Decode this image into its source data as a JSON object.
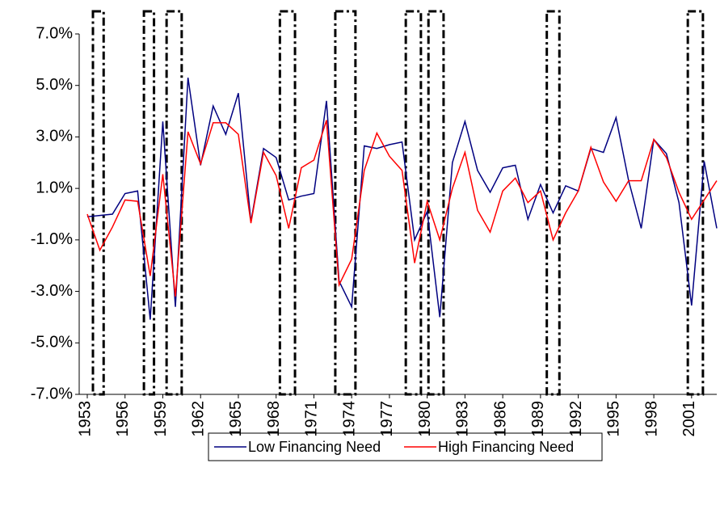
{
  "chart_data": {
    "type": "line",
    "x": [
      1953,
      1954,
      1955,
      1956,
      1957,
      1958,
      1959,
      1960,
      1961,
      1962,
      1963,
      1964,
      1965,
      1966,
      1967,
      1968,
      1969,
      1970,
      1971,
      1972,
      1973,
      1974,
      1975,
      1976,
      1977,
      1978,
      1979,
      1980,
      1981,
      1982,
      1983,
      1984,
      1985,
      1986,
      1987,
      1988,
      1989,
      1990,
      1991,
      1992,
      1993,
      1994,
      1995,
      1996,
      1997,
      1998,
      1999,
      2000,
      2001,
      2002,
      2003
    ],
    "series": [
      {
        "name": "Low Financing Need",
        "color": "#000080",
        "values": [
          -0.1,
          -0.05,
          0.0,
          0.8,
          0.9,
          -4.1,
          3.6,
          -3.6,
          5.3,
          1.9,
          4.2,
          3.1,
          4.7,
          -0.3,
          2.55,
          2.2,
          0.55,
          0.7,
          0.8,
          4.4,
          -2.6,
          -3.6,
          2.65,
          2.55,
          2.7,
          2.8,
          -1.0,
          0.1,
          -4.0,
          2.0,
          3.6,
          1.7,
          0.85,
          1.8,
          1.9,
          -0.2,
          1.15,
          0.05,
          1.1,
          0.9,
          2.55,
          2.4,
          3.75,
          1.3,
          -0.55,
          2.9,
          2.35,
          0.45,
          -3.55,
          2.05,
          -0.55
        ]
      },
      {
        "name": "High Financing Need",
        "color": "#ff0000",
        "values": [
          0.0,
          -1.4,
          -0.5,
          0.55,
          0.5,
          -2.4,
          1.55,
          -3.2,
          3.2,
          1.95,
          3.55,
          3.55,
          3.1,
          -0.35,
          2.4,
          1.5,
          -0.55,
          1.8,
          2.1,
          3.65,
          -2.75,
          -1.75,
          1.7,
          3.15,
          2.25,
          1.7,
          -1.9,
          0.5,
          -1.0,
          1.0,
          2.4,
          0.15,
          -0.7,
          0.9,
          1.4,
          0.45,
          0.9,
          -1.0,
          0.05,
          0.9,
          2.6,
          1.25,
          0.5,
          1.3,
          1.3,
          2.9,
          2.2,
          0.85,
          -0.2,
          0.55,
          1.3
        ]
      }
    ],
    "xlim": [
      1953,
      2003
    ],
    "xticks": [
      1953,
      1956,
      1959,
      1962,
      1965,
      1968,
      1971,
      1974,
      1977,
      1980,
      1983,
      1986,
      1989,
      1992,
      1995,
      1998,
      2001
    ],
    "ylim": [
      -7,
      7
    ],
    "yticks": [
      {
        "value": -7,
        "label": "-7.0%"
      },
      {
        "value": -5,
        "label": "-5.0%"
      },
      {
        "value": -3,
        "label": "-3.0%"
      },
      {
        "value": -1,
        "label": "-1.0%"
      },
      {
        "value": 1,
        "label": "1.0%"
      },
      {
        "value": 3,
        "label": "3.0%"
      },
      {
        "value": 5,
        "label": "5.0%"
      },
      {
        "value": 7,
        "label": "7.0%"
      }
    ],
    "recession_periods": [
      [
        1953.45,
        1954.3
      ],
      [
        1957.5,
        1958.3
      ],
      [
        1959.3,
        1960.5
      ],
      [
        1968.3,
        1969.5
      ],
      [
        1972.7,
        1974.3
      ],
      [
        1978.3,
        1979.5
      ],
      [
        1980.1,
        1981.3
      ],
      [
        1989.5,
        1990.5
      ],
      [
        2000.7,
        2001.9
      ]
    ],
    "grid": false,
    "legend": "bottom"
  }
}
